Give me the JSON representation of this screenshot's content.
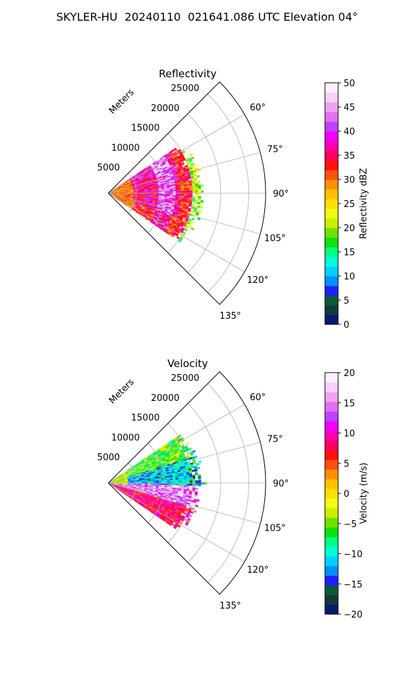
{
  "figure_title": "SKYLER-HU  20240110  021641.086 UTC Elevation 04°",
  "chart_data": [
    {
      "type": "heatmap",
      "projection": "polar sector (azimuth × range)",
      "title": "Reflectivity",
      "range_axis_label": "Meters",
      "range_ticks": [
        "5000",
        "10000",
        "15000",
        "20000",
        "25000"
      ],
      "azimuth_ticks": [
        "60°",
        "75°",
        "90°",
        "105°",
        "120°",
        "135°"
      ],
      "azimuth_range_deg": [
        45,
        135
      ],
      "range_max_m": 28000,
      "echo_extent": {
        "azimuth_deg": [
          56,
          124
        ],
        "range_m": [
          0,
          17000
        ],
        "edge_range_m": 17000
      },
      "field_description": [
        {
          "azimuth_deg": [
            56,
            70
          ],
          "dBZ_typical": 38
        },
        {
          "azimuth_deg": [
            70,
            110
          ],
          "dBZ_typical": 36
        },
        {
          "azimuth_deg": [
            110,
            124
          ],
          "dBZ_typical": 32
        }
      ],
      "colorbar": {
        "label": "Reflectivity dBZ",
        "min": 0,
        "max": 50,
        "ticks": [
          "0",
          "5",
          "10",
          "15",
          "20",
          "25",
          "30",
          "35",
          "40",
          "45",
          "50"
        ],
        "colors": [
          "#0a1a6e",
          "#123a3a",
          "#0b5a3a",
          "#2020ff",
          "#0090ff",
          "#00d0ff",
          "#00ffd8",
          "#00ff80",
          "#10e010",
          "#70e000",
          "#c8f000",
          "#f0ff10",
          "#ffe000",
          "#ffc000",
          "#ff9000",
          "#ff5010",
          "#ff1010",
          "#ff0060",
          "#ff00b0",
          "#f000ff",
          "#c040ff",
          "#e070f0",
          "#f0a0f0",
          "#f8d0f8",
          "#fff0ff"
        ]
      },
      "grid": true
    },
    {
      "type": "heatmap",
      "projection": "polar sector (azimuth × range)",
      "title": "Velocity",
      "range_axis_label": "Meters",
      "range_ticks": [
        "5000",
        "10000",
        "15000",
        "20000",
        "25000"
      ],
      "azimuth_ticks": [
        "60°",
        "75°",
        "90°",
        "105°",
        "120°",
        "135°"
      ],
      "azimuth_range_deg": [
        45,
        135
      ],
      "range_max_m": 28000,
      "echo_extent": {
        "azimuth_deg": [
          56,
          124
        ],
        "range_m": [
          0,
          17000
        ],
        "edge_range_m": 17000
      },
      "field_description": [
        {
          "azimuth_deg": [
            56,
            72
          ],
          "ms_typical": -6
        },
        {
          "azimuth_deg": [
            72,
            92
          ],
          "ms_typical": -11
        },
        {
          "azimuth_deg": [
            92,
            106
          ],
          "ms_typical": 15
        },
        {
          "azimuth_deg": [
            106,
            124
          ],
          "ms_typical": 8
        }
      ],
      "colorbar": {
        "label": "Velocity (m/s)",
        "min": -20,
        "max": 20,
        "ticks": [
          "−20",
          "−15",
          "−10",
          "−5",
          "0",
          "5",
          "10",
          "15",
          "20"
        ],
        "colors": [
          "#0a1a6e",
          "#123a3a",
          "#0b5a3a",
          "#2020ff",
          "#0090ff",
          "#00d0ff",
          "#00ffd8",
          "#00ff80",
          "#10e010",
          "#70e000",
          "#c8f000",
          "#f0ff10",
          "#ffe000",
          "#ffc000",
          "#ff9000",
          "#ff5010",
          "#ff1010",
          "#ff0060",
          "#ff00b0",
          "#f000ff",
          "#c040ff",
          "#e070f0",
          "#f0a0f0",
          "#f8d0f8",
          "#fff0ff"
        ]
      },
      "grid": true
    }
  ]
}
